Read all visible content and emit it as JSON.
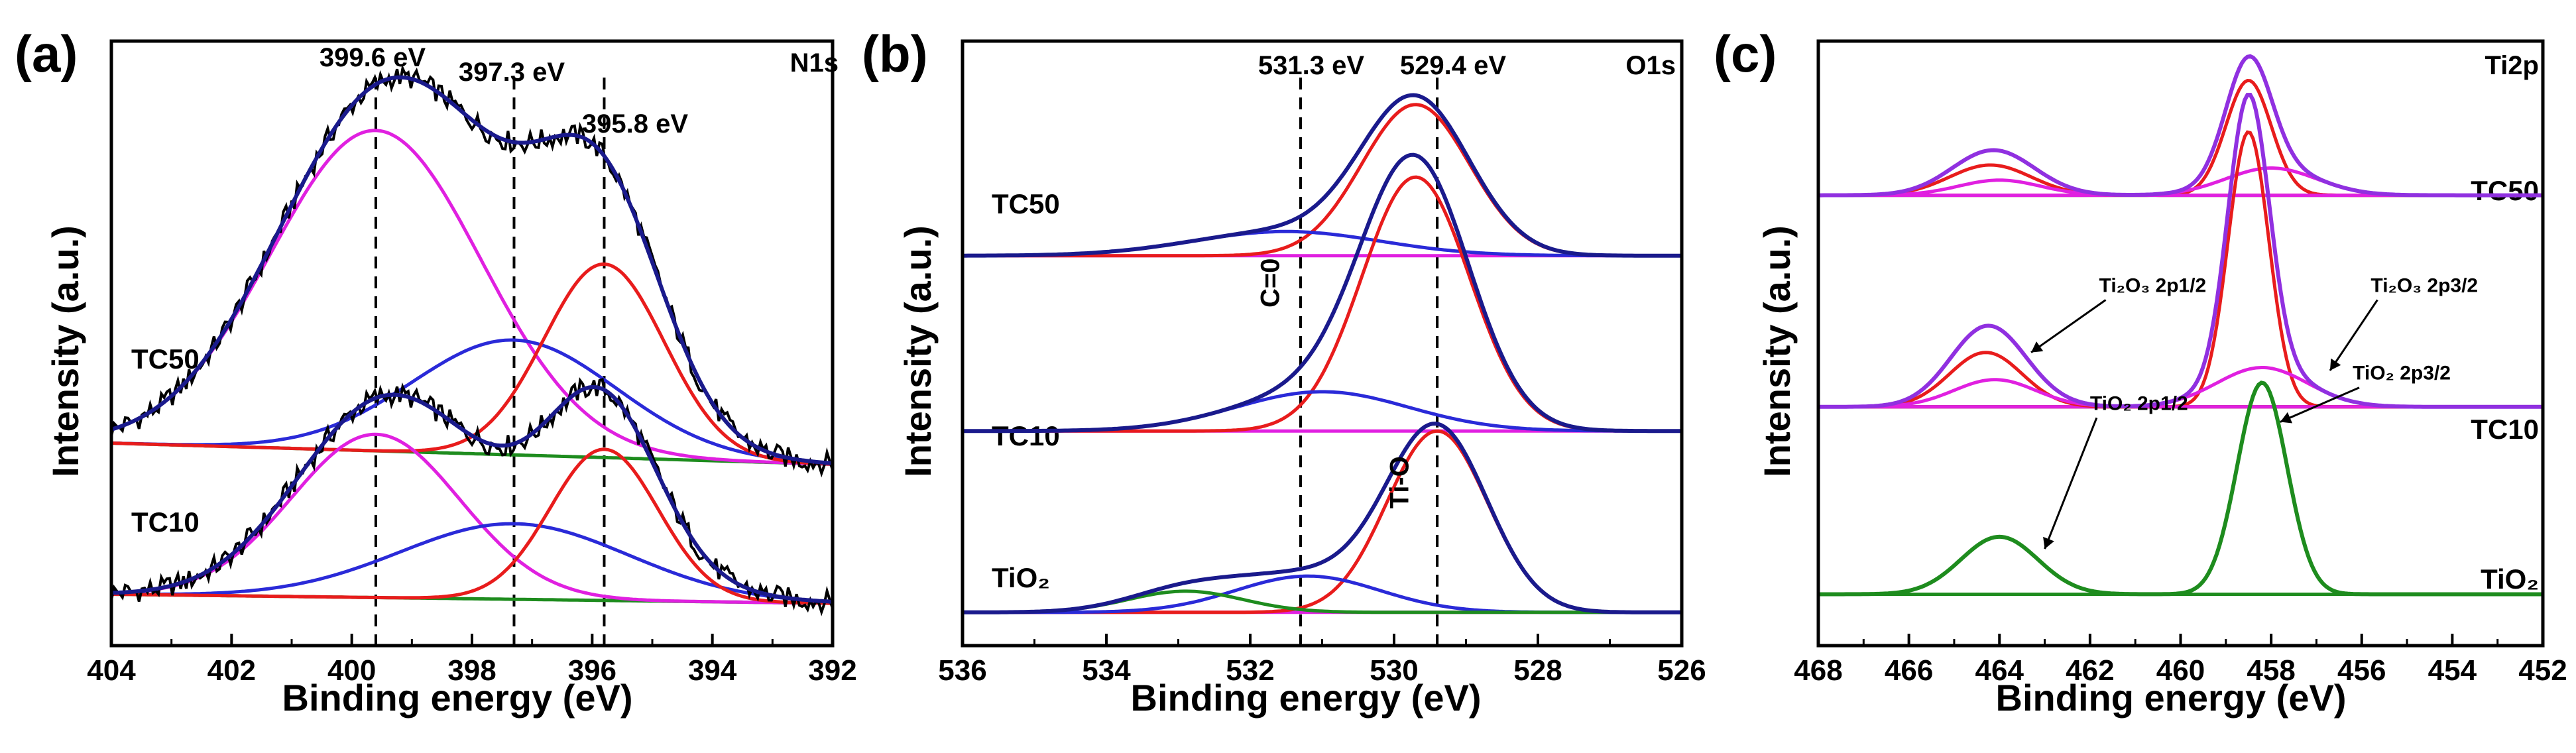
{
  "chart_data": [
    {
      "type": "line",
      "panel_label": "(a)",
      "title": "N1s",
      "xlabel": "Binding energy (eV)",
      "ylabel": "Intensity (a.u.)",
      "xlim": [
        404,
        392
      ],
      "ylim": [
        0,
        10
      ],
      "x_ticks": [
        404,
        402,
        400,
        398,
        396,
        394,
        392
      ],
      "reference_lines": [
        {
          "x": 399.6,
          "label": "399.6 eV"
        },
        {
          "x": 397.3,
          "label": "397.3 eV"
        },
        {
          "x": 395.8,
          "label": "395.8 eV"
        }
      ],
      "series": [
        {
          "name": "TC50",
          "baseline": 3.35,
          "background_end": 3.0,
          "peaks": [
            {
              "center": 399.6,
              "height": 5.3,
              "width": 1.75,
              "color": "#e020e0"
            },
            {
              "center": 397.3,
              "height": 1.9,
              "width": 1.7,
              "color": "#2a2ad8"
            },
            {
              "center": 395.8,
              "height": 3.2,
              "width": 1.0,
              "color": "#e81c1c"
            }
          ],
          "envelope_color": "#1a1a8c",
          "raw_color": "#000000",
          "background_color": "#1e8c1e"
        },
        {
          "name": "TC10",
          "baseline": 0.85,
          "background_end": 0.7,
          "peaks": [
            {
              "center": 399.6,
              "height": 2.7,
              "width": 1.4,
              "color": "#e020e0"
            },
            {
              "center": 397.3,
              "height": 1.25,
              "width": 1.9,
              "color": "#2a2ad8"
            },
            {
              "center": 395.8,
              "height": 2.5,
              "width": 0.9,
              "color": "#e81c1c"
            }
          ],
          "envelope_color": "#1a1a8c",
          "raw_color": "#000000",
          "background_color": "#1e8c1e"
        }
      ],
      "annotations": []
    },
    {
      "type": "line",
      "panel_label": "(b)",
      "title": "O1s",
      "xlabel": "Binding energy (eV)",
      "ylabel": "Intensity (a.u.)",
      "xlim": [
        536,
        526
      ],
      "ylim": [
        0,
        10
      ],
      "x_ticks": [
        536,
        534,
        532,
        530,
        528,
        526
      ],
      "reference_lines": [
        {
          "x": 531.3,
          "label": "531.3 eV"
        },
        {
          "x": 529.4,
          "label": "529.4 eV"
        }
      ],
      "series": [
        {
          "name": "TC50",
          "baseline": 6.45,
          "peaks": [
            {
              "center": 529.7,
              "height": 2.5,
              "width": 0.75,
              "color": "#e81c1c"
            },
            {
              "center": 531.5,
              "height": 0.4,
              "width": 1.3,
              "color": "#2a2ad8"
            }
          ],
          "envelope_color": "#1a1a8c",
          "background_color": "#e020e0"
        },
        {
          "name": "TC10",
          "baseline": 3.55,
          "peaks": [
            {
              "center": 529.7,
              "height": 4.2,
              "width": 0.75,
              "color": "#e81c1c"
            },
            {
              "center": 531.0,
              "height": 0.65,
              "width": 1.2,
              "color": "#2a2ad8"
            }
          ],
          "envelope_color": "#1a1a8c",
          "background_color": "#e020e0"
        },
        {
          "name": "TiO₂",
          "baseline": 0.55,
          "peaks": [
            {
              "center": 529.4,
              "height": 3.0,
              "width": 0.7,
              "color": "#e81c1c"
            },
            {
              "center": 531.2,
              "height": 0.6,
              "width": 1.0,
              "color": "#2a2ad8"
            },
            {
              "center": 532.9,
              "height": 0.35,
              "width": 0.8,
              "color": "#1e8c1e"
            }
          ],
          "envelope_color": "#1a1a8c",
          "background_color": "#e020e0"
        }
      ],
      "annotations": [
        {
          "text": "C=0",
          "x": 531.6,
          "y": 6.0,
          "rotate": -90
        },
        {
          "text": "Ti-O",
          "x": 529.8,
          "y": 2.7,
          "rotate": -90
        }
      ]
    },
    {
      "type": "line",
      "panel_label": "(c)",
      "title": "Ti2p",
      "xlabel": "Binding energy (eV)",
      "ylabel": "Intensity (a.u.)",
      "xlim": [
        468,
        452
      ],
      "ylim": [
        0,
        10
      ],
      "x_ticks": [
        468,
        466,
        464,
        462,
        460,
        458,
        456,
        454,
        452
      ],
      "reference_lines": [],
      "series": [
        {
          "name": "TC50",
          "baseline": 7.45,
          "peaks": [
            {
              "center": 458.5,
              "height": 1.9,
              "width": 0.5,
              "color": "#e81c1c"
            },
            {
              "center": 458.0,
              "height": 0.45,
              "width": 1.0,
              "color": "#e020e0"
            },
            {
              "center": 464.2,
              "height": 0.5,
              "width": 0.9,
              "color": "#e81c1c"
            },
            {
              "center": 464.0,
              "height": 0.25,
              "width": 0.9,
              "color": "#e020e0"
            }
          ],
          "envelope_color": "#9030e0",
          "background_color": "#1a1a8c"
        },
        {
          "name": "TC10",
          "baseline": 3.95,
          "peaks": [
            {
              "center": 458.5,
              "height": 4.55,
              "width": 0.45,
              "color": "#e81c1c"
            },
            {
              "center": 458.2,
              "height": 0.65,
              "width": 1.0,
              "color": "#e020e0"
            },
            {
              "center": 464.3,
              "height": 0.9,
              "width": 0.8,
              "color": "#e81c1c"
            },
            {
              "center": 464.1,
              "height": 0.45,
              "width": 0.9,
              "color": "#e020e0"
            }
          ],
          "envelope_color": "#9030e0",
          "background_color": "#1a1a8c"
        },
        {
          "name": "TiO₂",
          "baseline": 0.85,
          "peaks": [
            {
              "center": 458.2,
              "height": 3.5,
              "width": 0.55,
              "color": "#1e8c1e"
            },
            {
              "center": 464.0,
              "height": 0.95,
              "width": 0.85,
              "color": "#1e8c1e"
            }
          ],
          "envelope_color": "#1e8c1e",
          "background_color": "#1a1a8c"
        }
      ],
      "annotations": [
        {
          "text": "Ti₂O₃ 2p1/2",
          "x": 461.8,
          "y": 5.85,
          "arrow_to": [
            463.3,
            4.85
          ]
        },
        {
          "text": "Ti₂O₃ 2p3/2",
          "x": 455.8,
          "y": 5.85,
          "arrow_to": [
            456.7,
            4.55
          ]
        },
        {
          "text": "TiO₂ 2p1/2",
          "x": 462.0,
          "y": 3.9,
          "arrow_to": [
            463.0,
            1.6
          ]
        },
        {
          "text": "TiO₂ 2p3/2",
          "x": 456.2,
          "y": 4.4,
          "arrow_to": [
            457.8,
            3.7
          ]
        }
      ]
    }
  ]
}
